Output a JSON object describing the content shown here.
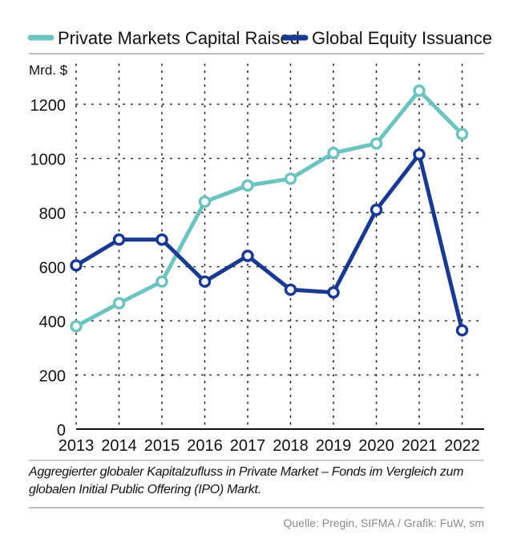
{
  "chart_data": {
    "type": "line",
    "title": "",
    "xlabel": "",
    "ylabel": "Mrd. $",
    "ylim": [
      0,
      1300
    ],
    "yticks": [
      0,
      200,
      400,
      600,
      800,
      1000,
      1200
    ],
    "grid": true,
    "legend_position": "top",
    "categories": [
      "2013",
      "2014",
      "2015",
      "2016",
      "2017",
      "2018",
      "2019",
      "2020",
      "2021",
      "2022"
    ],
    "series": [
      {
        "name": "Private Markets Capital Raised",
        "color": "#6cc3bf",
        "values": [
          380,
          465,
          545,
          840,
          900,
          925,
          1020,
          1055,
          1250,
          1090
        ]
      },
      {
        "name": "Global Equity Issuance",
        "color": "#1a3a8f",
        "values": [
          605,
          700,
          700,
          545,
          640,
          515,
          505,
          810,
          1015,
          365
        ]
      }
    ],
    "caption": "Aggregierter globaler Kapitalzufluss in Private Market – Fonds im Vergleich zum globalen Initial Public Offering (IPO) Markt.",
    "source": "Quelle: Pregin, SIFMA / Grafik: FuW, sm"
  }
}
